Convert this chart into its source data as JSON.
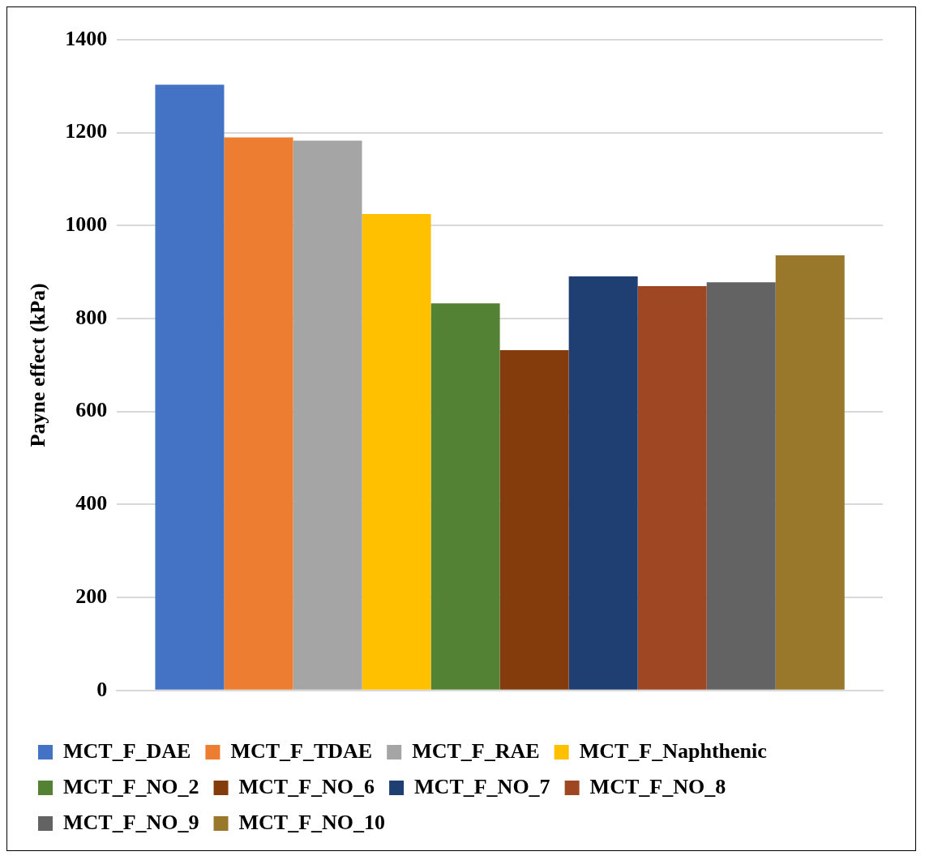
{
  "chart_data": {
    "type": "bar",
    "ylabel": "Payne effect (kPa)",
    "categories": [
      null
    ],
    "series": [
      {
        "name": "MCT_F_DAE",
        "color": "#4472c4",
        "values": [
          1303
        ]
      },
      {
        "name": "MCT_F_TDAE",
        "color": "#ed7d31",
        "values": [
          1190
        ]
      },
      {
        "name": "MCT_F_RAE",
        "color": "#a5a5a5",
        "values": [
          1183
        ]
      },
      {
        "name": "MCT_F_Naphthenic",
        "color": "#ffc000",
        "values": [
          1025
        ]
      },
      {
        "name": "MCT_F_NO_2",
        "color": "#548235",
        "values": [
          833
        ]
      },
      {
        "name": "MCT_F_NO_6",
        "color": "#843c0c",
        "values": [
          732
        ]
      },
      {
        "name": "MCT_F_NO_7",
        "color": "#1f3f73",
        "values": [
          891
        ]
      },
      {
        "name": "MCT_F_NO_8",
        "color": "#9e4722",
        "values": [
          870
        ]
      },
      {
        "name": "MCT_F_NO_9",
        "color": "#636363",
        "values": [
          878
        ]
      },
      {
        "name": "MCT_F_NO_10",
        "color": "#99772b",
        "values": [
          936
        ]
      }
    ],
    "ylim": [
      0,
      1400
    ],
    "yticks": [
      0,
      200,
      400,
      600,
      800,
      1000,
      1200,
      1400
    ],
    "grid": "y",
    "legend": "bottom"
  }
}
